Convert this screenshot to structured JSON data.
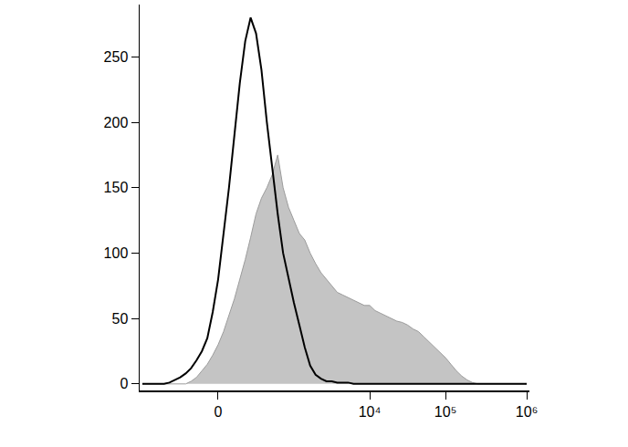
{
  "chart_data": {
    "type": "area",
    "categories": [
      null,
      null,
      null,
      null,
      null,
      null,
      null,
      null,
      null,
      null,
      null,
      null,
      null,
      null,
      "0",
      null,
      null,
      null,
      null,
      null,
      null,
      null,
      null,
      null,
      null,
      null,
      null,
      null,
      null,
      null,
      null,
      null,
      null,
      null,
      null,
      null,
      null,
      null,
      null,
      null,
      null,
      null,
      "10⁴",
      null,
      null,
      null,
      null,
      null,
      null,
      null,
      null,
      null,
      null,
      null,
      null,
      null,
      "10⁵",
      null,
      null,
      null,
      null,
      null,
      null,
      null,
      null,
      null,
      null,
      null,
      null,
      null,
      null,
      "10⁶"
    ],
    "series": [
      {
        "type": "area",
        "color": "#c4c4c4",
        "values": [
          0,
          0,
          0,
          0,
          0,
          0,
          0,
          0,
          0,
          2,
          5,
          10,
          15,
          22,
          30,
          40,
          52,
          65,
          80,
          95,
          112,
          130,
          142,
          150,
          160,
          175,
          150,
          135,
          125,
          115,
          110,
          100,
          92,
          85,
          80,
          75,
          70,
          68,
          66,
          64,
          62,
          60,
          60,
          56,
          54,
          52,
          50,
          48,
          47,
          45,
          42,
          40,
          36,
          32,
          28,
          24,
          20,
          15,
          10,
          6,
          3,
          1,
          0,
          0,
          0,
          0,
          0,
          0,
          0,
          0,
          0,
          0
        ]
      },
      {
        "type": "line",
        "color": "#000000",
        "values": [
          0,
          0,
          0,
          0,
          0,
          1,
          3,
          5,
          8,
          12,
          18,
          25,
          35,
          55,
          80,
          115,
          150,
          190,
          230,
          262,
          280,
          268,
          240,
          200,
          165,
          130,
          100,
          80,
          62,
          45,
          28,
          14,
          7,
          4,
          2,
          2,
          1,
          1,
          1,
          0,
          0,
          0,
          0,
          0,
          0,
          0,
          0,
          0,
          0,
          0,
          0,
          0,
          0,
          0,
          0,
          0,
          0,
          0,
          0,
          0,
          0,
          0,
          0,
          0,
          0,
          0,
          0,
          0,
          0,
          0,
          0,
          0
        ]
      }
    ],
    "ylim": [
      -5,
      290
    ],
    "yticks": [
      0,
      50,
      100,
      150,
      200,
      250
    ],
    "grid": false,
    "legend": false
  }
}
